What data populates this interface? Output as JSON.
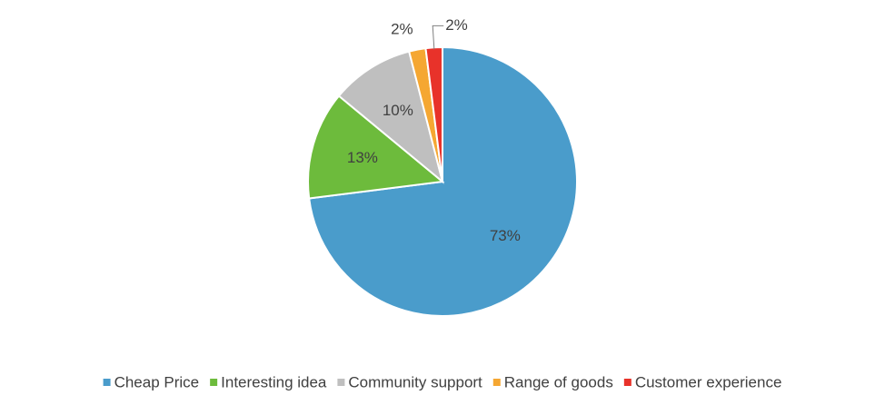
{
  "chart_data": {
    "type": "pie",
    "categories": [
      "Cheap Price",
      "Interesting idea",
      "Community support",
      "Range of goods",
      "Customer experience"
    ],
    "values": [
      73,
      13,
      10,
      2,
      2
    ],
    "value_labels": [
      "73%",
      "13%",
      "10%",
      "2%",
      "2%"
    ],
    "colors": [
      "#4a9ccb",
      "#6dbb3c",
      "#bfbfbf",
      "#f5a732",
      "#e8322a"
    ],
    "legend": "bottom"
  }
}
